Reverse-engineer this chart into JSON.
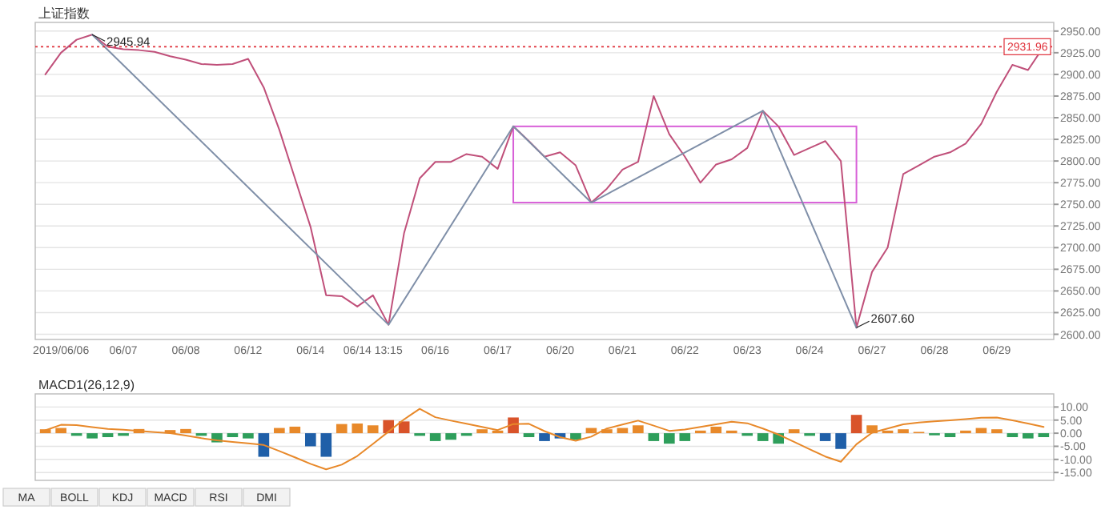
{
  "chart_data": [
    {
      "type": "line",
      "title": "上证指数",
      "grid": "y",
      "categories": [
        null,
        "2019/06/06",
        null,
        null,
        null,
        "06/07",
        null,
        null,
        null,
        "06/08",
        null,
        null,
        null,
        "06/12",
        null,
        null,
        null,
        "06/14",
        null,
        null,
        null,
        "06/14 13:15",
        null,
        null,
        null,
        "06/16",
        null,
        null,
        null,
        "06/17",
        null,
        null,
        null,
        "06/20",
        null,
        null,
        null,
        "06/21",
        null,
        null,
        null,
        "06/22",
        null,
        null,
        null,
        "06/23",
        null,
        null,
        null,
        "06/24",
        null,
        null,
        null,
        "06/27",
        null,
        null,
        null,
        "06/28",
        null,
        null,
        null,
        "06/29",
        null,
        null,
        null
      ],
      "ylim": [
        2594,
        2960
      ],
      "yticks": [
        {
          "value": 2600,
          "label": "2600.00"
        },
        {
          "value": 2625,
          "label": "2625.00"
        },
        {
          "value": 2650,
          "label": "2650.00"
        },
        {
          "value": 2675,
          "label": "2675.00"
        },
        {
          "value": 2700,
          "label": "2700.00"
        },
        {
          "value": 2725,
          "label": "2725.00"
        },
        {
          "value": 2750,
          "label": "2750.00"
        },
        {
          "value": 2775,
          "label": "2775.00"
        },
        {
          "value": 2800,
          "label": "2800.00"
        },
        {
          "value": 2825,
          "label": "2825.00"
        },
        {
          "value": 2850,
          "label": "2850.00"
        },
        {
          "value": 2875,
          "label": "2875.00"
        },
        {
          "value": 2900,
          "label": "2900.00"
        },
        {
          "value": 2925,
          "label": "2925.00"
        },
        {
          "value": 2950,
          "label": "2950.00"
        }
      ],
      "ref_lines": [
        {
          "axis": "y",
          "value": 2931.96,
          "label": "2931.96",
          "color": "#e0303a",
          "line_style": "dotted"
        }
      ],
      "series": [
        {
          "type": "line",
          "color": "#c0507a",
          "values": [
            2900,
            2925,
            2940,
            2945.94,
            2932,
            2929,
            2928,
            2926,
            2921,
            2917,
            2912,
            2911,
            2912,
            2918,
            2885,
            2836,
            2780,
            2724,
            2645,
            2644,
            2632,
            2645,
            2611,
            2717,
            2780,
            2799,
            2799,
            2808,
            2805,
            2791,
            2840,
            2823,
            2805,
            2810,
            2795,
            2752,
            2768,
            2790,
            2799,
            2875,
            2831,
            2805,
            2775,
            2796,
            2802,
            2815,
            2858,
            2840,
            2807,
            2815,
            2823,
            2800,
            2607.6,
            2672,
            2700,
            2785,
            2795,
            2805,
            2810,
            2820,
            2843,
            2880,
            2911,
            2905,
            2931.96
          ]
        },
        {
          "type": "line",
          "color": "#7f8fa8",
          "values": [
            null,
            null,
            null,
            2945.94,
            null,
            null,
            null,
            null,
            null,
            null,
            null,
            null,
            null,
            null,
            null,
            null,
            null,
            null,
            null,
            null,
            null,
            null,
            2611,
            null,
            null,
            null,
            null,
            null,
            null,
            null,
            2840,
            null,
            null,
            null,
            null,
            2752,
            null,
            null,
            null,
            null,
            null,
            null,
            null,
            null,
            null,
            null,
            2858,
            null,
            null,
            null,
            null,
            null,
            2607.6,
            null,
            null,
            null,
            null,
            null,
            null,
            null,
            null,
            null,
            null,
            null,
            null
          ]
        }
      ],
      "annotations": [
        "2945.94",
        "2607.60"
      ]
    },
    {
      "type": "bar",
      "title": "MACD1(26,12,9)",
      "grid": "y",
      "tick_labels": "y",
      "categories": [
        null,
        null,
        null,
        null,
        null,
        null,
        null,
        null,
        null,
        null,
        null,
        null,
        null,
        null,
        null,
        null,
        null,
        null,
        null,
        null,
        null,
        null,
        null,
        null,
        null,
        null,
        null,
        null,
        null,
        null,
        null,
        null,
        null,
        null,
        null,
        null,
        null,
        null,
        null,
        null,
        null,
        null,
        null,
        null,
        null,
        null,
        null,
        null,
        null,
        null,
        null,
        null,
        null,
        null,
        null,
        null,
        null,
        null,
        null,
        null,
        null,
        null,
        null,
        null,
        null
      ],
      "ylim": [
        -18,
        15
      ],
      "yticks": [
        {
          "value": -15,
          "label": "-15.00"
        },
        {
          "value": -10,
          "label": "-10.00"
        },
        {
          "value": -5,
          "label": "-5.00"
        },
        {
          "value": 0,
          "label": "0.00"
        },
        {
          "value": 5,
          "label": "5.00"
        },
        {
          "value": 10,
          "label": "10.00"
        }
      ],
      "series": [
        {
          "type": "bar",
          "values": [
            1.5,
            2,
            -1,
            -2,
            -1.5,
            -1,
            1.6,
            null,
            1.2,
            1.6,
            -1,
            -3.5,
            -1.5,
            -2,
            -9,
            2,
            2.5,
            -5,
            -9,
            3.5,
            3.7,
            3,
            5,
            4.5,
            -1,
            -3,
            -2.5,
            -1,
            1.5,
            1,
            6,
            -1.5,
            -3,
            -2,
            -2.5,
            2,
            1.5,
            2,
            3,
            -3,
            -4,
            -3,
            1,
            2.5,
            1,
            -1,
            -3,
            -4,
            1.5,
            -1,
            -3,
            -6,
            7,
            3,
            1,
            1.5,
            0.5,
            -0.8,
            -1.5,
            1,
            2,
            1.5,
            -1.5,
            -2,
            -1.5
          ],
          "colors": [
            "#e8892a",
            "#e8892a",
            "#2e9e5b",
            "#2e9e5b",
            "#2e9e5b",
            "#2e9e5b",
            "#e8892a",
            null,
            "#e8892a",
            "#e8892a",
            "#2e9e5b",
            "#2e9e5b",
            "#2e9e5b",
            "#2e9e5b",
            "#1f5fa8",
            "#e8892a",
            "#e8892a",
            "#1f5fa8",
            "#1f5fa8",
            "#e8892a",
            "#e8892a",
            "#e8892a",
            "#d9532a",
            "#d9532a",
            "#2e9e5b",
            "#2e9e5b",
            "#2e9e5b",
            "#2e9e5b",
            "#e8892a",
            "#e8892a",
            "#d9532a",
            "#2e9e5b",
            "#1f5fa8",
            "#1f5fa8",
            "#2e9e5b",
            "#e8892a",
            "#e8892a",
            "#e8892a",
            "#e8892a",
            "#2e9e5b",
            "#2e9e5b",
            "#2e9e5b",
            "#e8892a",
            "#e8892a",
            "#e8892a",
            "#2e9e5b",
            "#2e9e5b",
            "#2e9e5b",
            "#e8892a",
            "#2e9e5b",
            "#1f5fa8",
            "#1f5fa8",
            "#d9532a",
            "#e8892a",
            "#e8892a",
            "#e8892a",
            "#e8892a",
            "#2e9e5b",
            "#2e9e5b",
            "#e8892a",
            "#e8892a",
            "#e8892a",
            "#2e9e5b",
            "#2e9e5b",
            "#2e9e5b"
          ]
        },
        {
          "type": "line",
          "color": "#e8892a",
          "values": [
            1.1,
            3.2,
            3.1,
            2.3,
            1.6,
            1.3,
            0.9,
            0.4,
            0,
            -0.9,
            -1.9,
            -2.7,
            -3.3,
            -3.9,
            -4.5,
            -6.8,
            -9.2,
            -11.7,
            -13.8,
            -12,
            -8.7,
            -4.1,
            0.6,
            5.3,
            9.3,
            6.1,
            4.8,
            3.6,
            2.4,
            1.2,
            3.5,
            3.6,
            0.8,
            -1.5,
            -2.9,
            -1.3,
            1.8,
            3.3,
            4.8,
            2.9,
            0.9,
            1.4,
            2.4,
            3.4,
            4.4,
            3.8,
            1.8,
            -0.5,
            -3.3,
            -6.1,
            -8.9,
            -10.9,
            -4.2,
            0.2,
            1.8,
            3.4,
            4.1,
            4.5,
            4.9,
            5.4,
            5.9,
            6,
            4.9,
            3.7,
            2.4
          ]
        }
      ],
      "annotations": [
        "MA",
        "BOLL",
        "KDJ",
        "MACD",
        "RSI",
        "DMI"
      ]
    }
  ]
}
